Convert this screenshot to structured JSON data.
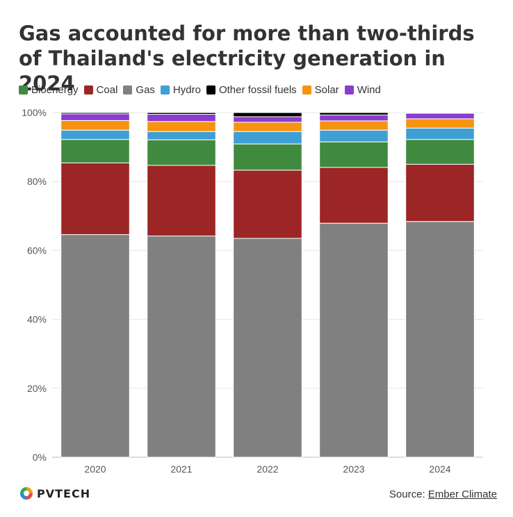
{
  "title": "Gas accounted for more than two-thirds of Thailand's electricity generation in 2024",
  "footer": {
    "logo_text": "PVTECH",
    "source_label": "Source:",
    "source_link": "Ember Climate"
  },
  "chart_data": {
    "type": "bar",
    "stacked": true,
    "categories": [
      "2020",
      "2021",
      "2022",
      "2023",
      "2024"
    ],
    "y_ticks": [
      "0%",
      "20%",
      "40%",
      "60%",
      "80%",
      "100%"
    ],
    "ylim": [
      0,
      100
    ],
    "grid": true,
    "legend_position": "top-left",
    "series": [
      {
        "name": "Gas",
        "color": "#808080",
        "values": [
          64.6,
          64.2,
          63.5,
          67.9,
          68.4
        ]
      },
      {
        "name": "Coal",
        "color": "#9b2625",
        "values": [
          20.8,
          20.5,
          19.8,
          16.2,
          16.6
        ]
      },
      {
        "name": "Bioenergy",
        "color": "#3f8a3f",
        "values": [
          6.8,
          7.4,
          7.6,
          7.4,
          7.2
        ]
      },
      {
        "name": "Hydro",
        "color": "#3f9fd2",
        "values": [
          2.7,
          2.4,
          3.6,
          3.4,
          3.3
        ]
      },
      {
        "name": "Solar",
        "color": "#f7930f",
        "values": [
          2.8,
          2.9,
          2.7,
          2.7,
          2.7
        ]
      },
      {
        "name": "Wind",
        "color": "#8a3ccf",
        "values": [
          1.9,
          2.1,
          1.6,
          1.7,
          1.6
        ]
      },
      {
        "name": "Other fossil fuels",
        "color": "#000000",
        "values": [
          0.4,
          0.5,
          1.2,
          0.7,
          0.2
        ]
      }
    ],
    "legend_order": [
      "Bioenergy",
      "Coal",
      "Gas",
      "Hydro",
      "Other fossil fuels",
      "Solar",
      "Wind"
    ]
  }
}
